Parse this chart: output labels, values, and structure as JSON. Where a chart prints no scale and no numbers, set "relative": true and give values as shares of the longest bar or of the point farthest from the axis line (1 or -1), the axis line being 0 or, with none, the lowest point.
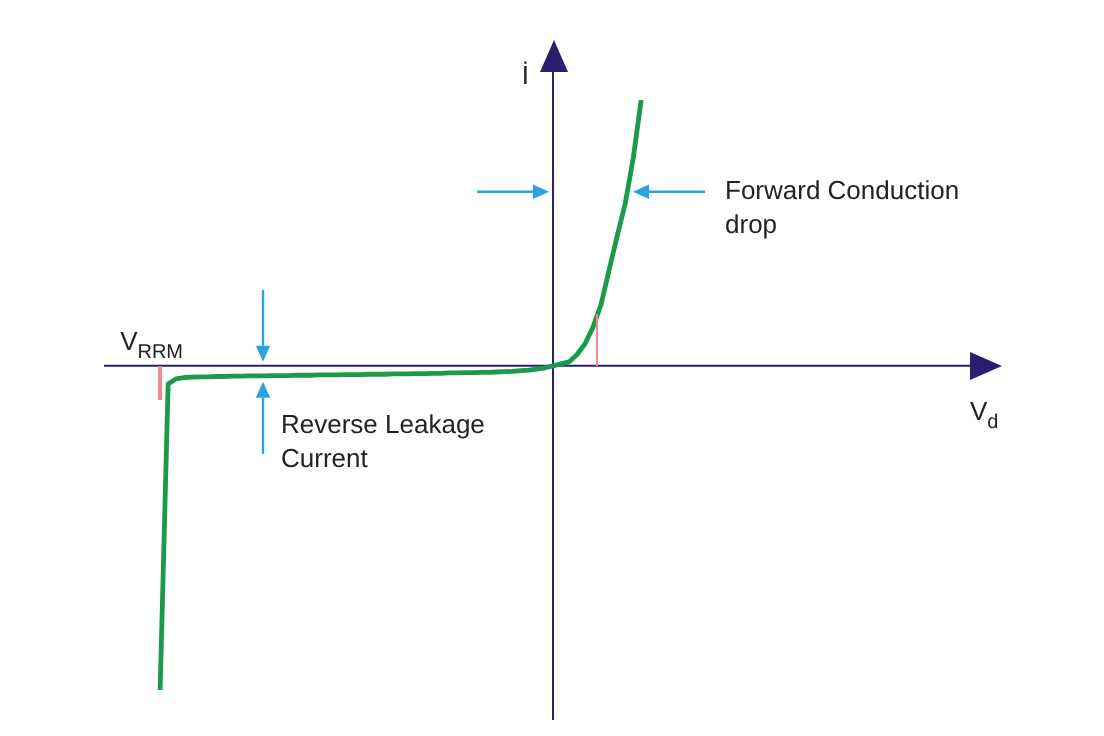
{
  "chart_data": {
    "type": "line",
    "relative": true,
    "xlabel": "V$_{d}$",
    "ylabel": "İ",
    "legend": false,
    "categories": [
      null,
      null,
      null,
      null,
      null,
      null,
      null,
      null,
      null,
      null,
      null,
      null,
      null,
      null,
      null,
      null,
      null,
      null,
      null,
      null,
      null,
      null,
      null,
      null,
      null,
      null,
      null,
      null,
      null,
      null,
      null,
      null,
      null,
      null,
      null,
      null,
      null,
      null,
      null,
      null,
      null,
      null,
      null,
      null,
      null,
      null,
      null,
      null,
      null,
      null,
      null,
      null,
      null,
      null,
      null,
      null,
      null,
      null,
      null,
      null,
      null,
      null,
      null,
      null,
      null,
      null,
      null,
      null,
      null,
      null,
      null,
      null,
      null,
      null,
      null,
      null,
      null,
      null,
      null,
      null,
      null,
      null,
      null,
      null,
      null,
      null,
      null,
      null,
      null,
      null,
      null,
      null,
      null,
      null,
      null,
      null,
      null,
      null,
      null,
      null,
      null,
      null,
      null,
      null,
      null,
      null,
      null,
      null,
      null,
      null,
      null,
      null
    ],
    "series": [
      {
        "color": "#1a9a4a",
        "values": [
          null,
          null,
          null,
          null,
          null,
          null,
          null,
          -1,
          -0.056,
          -0.04,
          -0.036,
          -0.035,
          -0.034,
          -0.034,
          -0.033,
          -0.033,
          -0.032,
          -0.032,
          -0.031,
          -0.031,
          -0.031,
          -0.03,
          -0.03,
          -0.03,
          -0.029,
          -0.029,
          -0.029,
          -0.028,
          -0.028,
          -0.028,
          -0.027,
          -0.027,
          -0.027,
          -0.026,
          -0.026,
          -0.026,
          -0.025,
          -0.025,
          -0.025,
          -0.024,
          -0.024,
          -0.023,
          -0.023,
          -0.022,
          -0.022,
          -0.021,
          -0.021,
          -0.02,
          -0.02,
          -0.019,
          -0.018,
          -0.017,
          -0.015,
          -0.013,
          -0.01,
          -0.006,
          0,
          0.006,
          0.012,
          0.035,
          0.068,
          0.12,
          0.19,
          0.296,
          0.4,
          0.5,
          0.64,
          0.82,
          null,
          null,
          null,
          null,
          null,
          null,
          null,
          null,
          null,
          null,
          null,
          null,
          null,
          null,
          null,
          null,
          null,
          null,
          null,
          null,
          null,
          null,
          null,
          null,
          null,
          null,
          null,
          null,
          null,
          null,
          null,
          null,
          null,
          null,
          null,
          null,
          null,
          null,
          null,
          null,
          null,
          null,
          null,
          null
        ]
      }
    ],
    "ref_lines": [
      {
        "axis": "y",
        "value": 0,
        "color": "#2b1d70"
      }
    ],
    "annotations": [
      "V$_{RRM}$",
      "Forward Conduction\ndrop",
      "Reverse Leakage\nCurrent"
    ]
  }
}
